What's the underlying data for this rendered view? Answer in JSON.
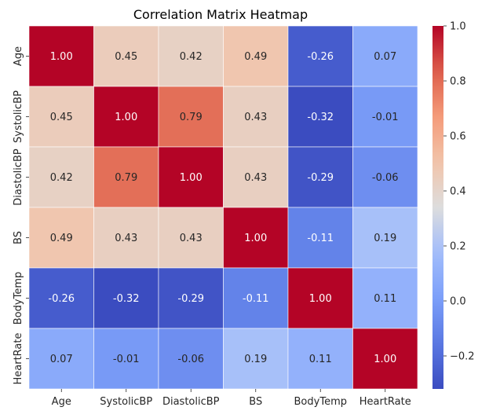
{
  "chart_data": {
    "type": "heatmap",
    "title": "Correlation Matrix Heatmap",
    "xlabel": "",
    "ylabel": "",
    "x_categories": [
      "Age",
      "SystolicBP",
      "DiastolicBP",
      "BS",
      "BodyTemp",
      "HeartRate"
    ],
    "y_categories": [
      "Age",
      "SystolicBP",
      "DiastolicBP",
      "BS",
      "BodyTemp",
      "HeartRate"
    ],
    "values": [
      [
        1.0,
        0.45,
        0.42,
        0.49,
        -0.26,
        0.07
      ],
      [
        0.45,
        1.0,
        0.79,
        0.43,
        -0.32,
        -0.01
      ],
      [
        0.42,
        0.79,
        1.0,
        0.43,
        -0.29,
        -0.06
      ],
      [
        0.49,
        0.43,
        0.43,
        1.0,
        -0.11,
        0.19
      ],
      [
        -0.26,
        -0.32,
        -0.29,
        -0.11,
        1.0,
        0.11
      ],
      [
        0.07,
        -0.01,
        -0.06,
        0.19,
        0.11,
        1.0
      ]
    ],
    "annotation_format": "0.00",
    "colormap": "coolwarm",
    "color_range": [
      -0.32,
      1.0
    ],
    "colorbar": {
      "ticks": [
        1.0,
        0.8,
        0.6,
        0.4,
        0.2,
        0.0,
        -0.2
      ],
      "tick_labels": [
        "1.0",
        "0.8",
        "0.6",
        "0.4",
        "0.2",
        "0.0",
        "−0.2"
      ],
      "placement": "right"
    },
    "colors": {
      "cell_border": "#ffffff",
      "text_on_dark": "#ffffff",
      "text_on_light": "#262626",
      "axis_text": "#262626"
    }
  }
}
